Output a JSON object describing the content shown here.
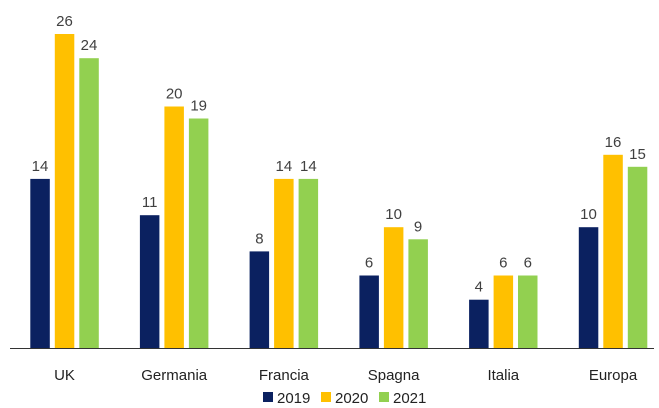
{
  "chart_data": {
    "type": "bar",
    "categories": [
      "UK",
      "Germania",
      "Francia",
      "Spagna",
      "Italia",
      "Europa"
    ],
    "series": [
      {
        "name": "2019",
        "color": "#0b2160",
        "values": [
          14,
          11,
          8,
          6,
          4,
          10
        ]
      },
      {
        "name": "2020",
        "color": "#ffc000",
        "values": [
          26,
          20,
          14,
          10,
          6,
          16
        ]
      },
      {
        "name": "2021",
        "color": "#92d050",
        "values": [
          24,
          19,
          14,
          9,
          6,
          15
        ]
      }
    ],
    "data_labels": [
      [
        "14",
        "11",
        "8",
        "6",
        "4",
        "10"
      ],
      [
        "26",
        "20",
        "14",
        "10",
        "6",
        "16"
      ],
      [
        "24",
        "19",
        "14",
        "9",
        "6",
        "15"
      ]
    ],
    "ylim": [
      0,
      27
    ],
    "grid": false,
    "legend_position": "bottom-center"
  }
}
